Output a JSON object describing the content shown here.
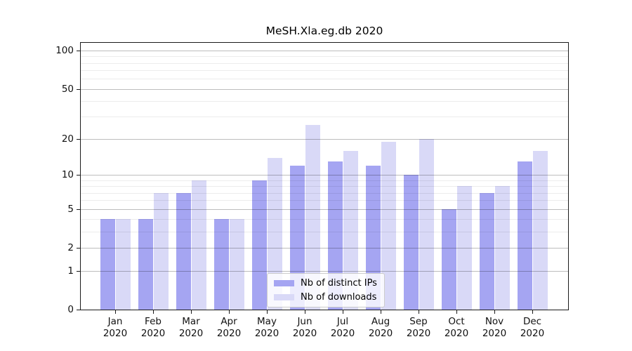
{
  "window": {
    "kind": "rendered-chart-image"
  },
  "chart_data": {
    "type": "bar",
    "title": "MeSH.Xla.eg.db 2020",
    "categories": [
      "Jan",
      "Feb",
      "Mar",
      "Apr",
      "May",
      "Jun",
      "Jul",
      "Aug",
      "Sep",
      "Oct",
      "Nov",
      "Dec"
    ],
    "category_year": "2020",
    "series": [
      {
        "name": "Nb of distinct IPs",
        "color": "#a5a5f2",
        "values": [
          4,
          4,
          7,
          4,
          9,
          12,
          13,
          12,
          10,
          5,
          7,
          13
        ]
      },
      {
        "name": "Nb of downloads",
        "color": "#d9d9f7",
        "values": [
          4,
          7,
          9,
          4,
          14,
          26,
          16,
          19,
          20,
          8,
          8,
          16
        ]
      }
    ],
    "xlabel": "",
    "ylabel": "",
    "yscale": "log1p",
    "ylim": [
      0,
      115
    ],
    "yticks_major": [
      0,
      1,
      2,
      5,
      10,
      20,
      50,
      100
    ],
    "yticks_minor": [
      3,
      4,
      6,
      7,
      8,
      9,
      30,
      40,
      60,
      70,
      80,
      90
    ],
    "grid": "horizontal",
    "legend_position": "inside-bottom-center",
    "colors": {
      "spine": "#1a1a1a",
      "grid_major": "rgba(0,0,0,0.26)",
      "grid_minor": "rgba(0,0,0,0.075)",
      "background": "#ffffff"
    }
  }
}
